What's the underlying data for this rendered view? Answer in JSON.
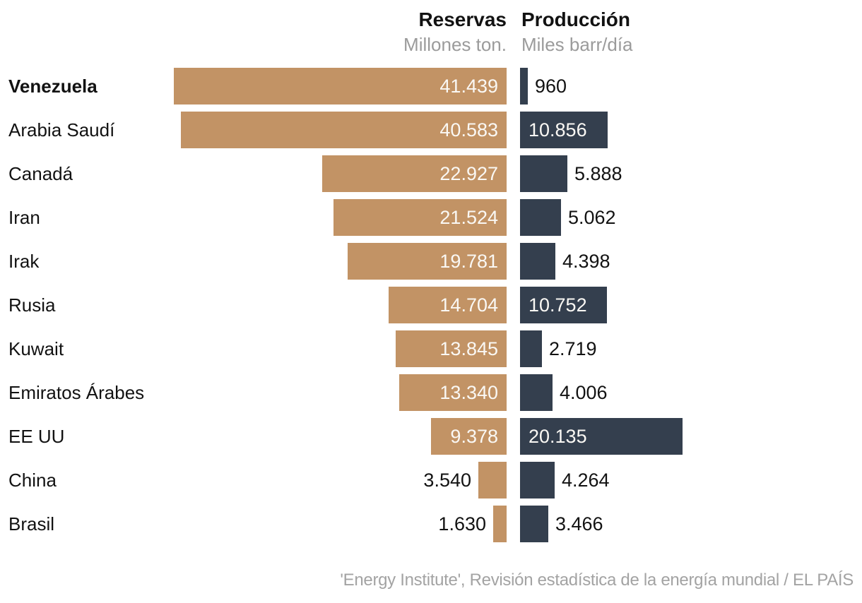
{
  "header": {
    "reserves_title": "Reservas",
    "reserves_subtitle": "Millones ton.",
    "production_title": "Producción",
    "production_subtitle": "Miles barr/día"
  },
  "chart_data": {
    "type": "bar",
    "orientation": "horizontal",
    "title": "",
    "categories": [
      "Venezuela",
      "Arabia Saudí",
      "Canadá",
      "Iran",
      "Irak",
      "Rusia",
      "Kuwait",
      "Emiratos Árabes",
      "EE UU",
      "China",
      "Brasil"
    ],
    "highlight_category": "Venezuela",
    "series": [
      {
        "name": "Reservas",
        "unit": "Millones ton.",
        "color": "#c29365",
        "values": [
          41439,
          40583,
          22927,
          21524,
          19781,
          14704,
          13845,
          13340,
          9378,
          3540,
          1630
        ],
        "labels": [
          "41.439",
          "40.583",
          "22.927",
          "21.524",
          "19.781",
          "14.704",
          "13.845",
          "13.340",
          "9.378",
          "3.540",
          "1.630"
        ]
      },
      {
        "name": "Producción",
        "unit": "Miles barr/día",
        "color": "#343f4e",
        "values": [
          960,
          10856,
          5888,
          5062,
          4398,
          10752,
          2719,
          4006,
          20135,
          4264,
          3466
        ],
        "labels": [
          "960",
          "10.856",
          "5.888",
          "5.062",
          "4.398",
          "10.752",
          "2.719",
          "4.006",
          "20.135",
          "4.264",
          "3.466"
        ]
      }
    ],
    "layout": {
      "value_labels": "inside bar when bar is wide enough, otherwise outside in black",
      "grid": false,
      "legend": "column headers above each bar group"
    }
  },
  "footer": {
    "source": "'Energy Institute', Revisión estadística de la energía mundial / EL PAÍS"
  }
}
